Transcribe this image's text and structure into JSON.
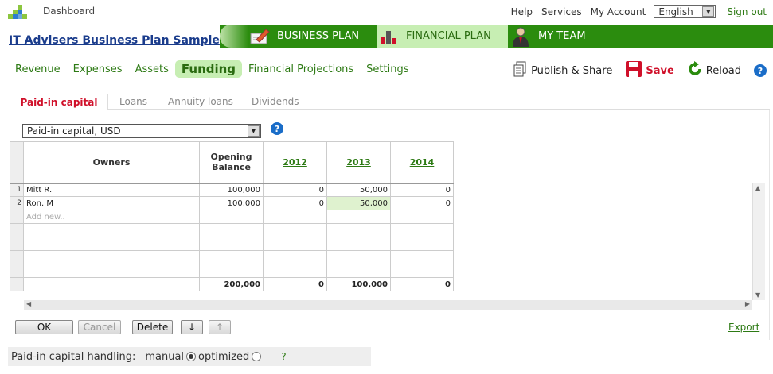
{
  "top": {
    "dashboard": "Dashboard",
    "help": "Help",
    "services": "Services",
    "my_account": "My Account",
    "language": "English",
    "sign_out": "Sign out"
  },
  "plan_title": "IT Advisers Business Plan Sample",
  "plan_tabs": [
    {
      "label": "BUSINESS PLAN",
      "icon": "pencil-document-icon"
    },
    {
      "label": "FINANCIAL PLAN",
      "icon": "bar-chart-icon"
    },
    {
      "label": "MY TEAM",
      "icon": "person-icon"
    }
  ],
  "subnav": [
    "Revenue",
    "Expenses",
    "Assets",
    "Funding",
    "Financial Projections",
    "Settings"
  ],
  "subnav_active": "Funding",
  "actions": {
    "publish": "Publish & Share",
    "save": "Save",
    "reload": "Reload"
  },
  "tabs": [
    "Paid-in capital",
    "Loans",
    "Annuity loans",
    "Dividends"
  ],
  "currency_select": "Paid-in capital, USD",
  "grid": {
    "headers": {
      "owners": "Owners",
      "opening_balance": "Opening Balance",
      "years": [
        "2012",
        "2013",
        "2014"
      ]
    },
    "rows": [
      {
        "num": "1",
        "owner": "Mitt R.",
        "opening": "100,000",
        "y2012": "0",
        "y2013": "50,000",
        "y2014": "0"
      },
      {
        "num": "2",
        "owner": "Ron. M",
        "opening": "100,000",
        "y2012": "0",
        "y2013": "50,000",
        "y2014": "0"
      }
    ],
    "add_new": "Add new..",
    "totals": {
      "opening": "200,000",
      "y2012": "0",
      "y2013": "100,000",
      "y2014": "0"
    }
  },
  "buttons": {
    "ok": "OK",
    "cancel": "Cancel",
    "delete": "Delete",
    "down": "↓",
    "up": "↑",
    "export": "Export"
  },
  "handling": {
    "label": "Paid-in capital handling:",
    "manual": "manual",
    "optimized": "optimized",
    "selected": "manual",
    "help": "?"
  },
  "colors": {
    "brand_green": "#2b8c0e",
    "active_tab_bg": "#c7eeb3",
    "save_red": "#d0102a",
    "link_blue": "#1a3c8c"
  }
}
